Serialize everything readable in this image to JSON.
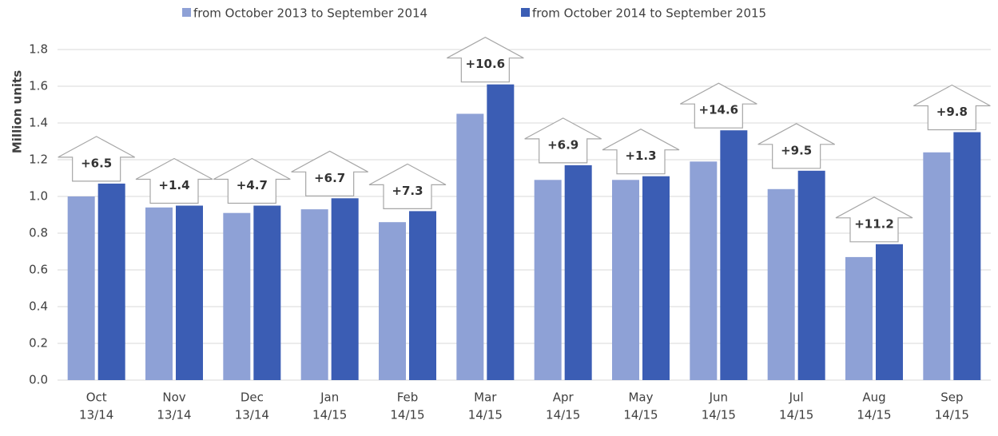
{
  "chart_data": {
    "type": "bar",
    "y_label": "Million units",
    "categories": [
      [
        "Oct",
        "13/14"
      ],
      [
        "Nov",
        "13/14"
      ],
      [
        "Dec",
        "13/14"
      ],
      [
        "Jan",
        "14/15"
      ],
      [
        "Feb",
        "14/15"
      ],
      [
        "Mar",
        "14/15"
      ],
      [
        "Apr",
        "14/15"
      ],
      [
        "May",
        "14/15"
      ],
      [
        "Jun",
        "14/15"
      ],
      [
        "Jul",
        "14/15"
      ],
      [
        "Aug",
        "14/15"
      ],
      [
        "Sep",
        "14/15"
      ]
    ],
    "series": [
      {
        "name": "from October 2013 to September 2014",
        "color": "#8ea1d6",
        "values": [
          1.0,
          0.94,
          0.91,
          0.93,
          0.86,
          1.45,
          1.09,
          1.09,
          1.19,
          1.04,
          0.67,
          1.24
        ]
      },
      {
        "name": "from October 2014 to September 2015",
        "color": "#3b5db4",
        "values": [
          1.07,
          0.95,
          0.95,
          0.99,
          0.92,
          1.61,
          1.17,
          1.11,
          1.36,
          1.14,
          0.74,
          1.35
        ]
      }
    ],
    "annotations": {
      "values": [
        6.5,
        1.4,
        4.7,
        6.7,
        7.3,
        10.6,
        6.9,
        1.3,
        14.6,
        9.5,
        11.2,
        9.8
      ],
      "value_labels": [
        "+6.5",
        "+1.4",
        "+4.7",
        "+6.7",
        "+7.3",
        "+10.6",
        "+6.9",
        "+1.3",
        "+14.6",
        "+9.5",
        "+11.2",
        "+9.8"
      ]
    },
    "ylim": [
      0,
      1.8
    ],
    "yticks": [
      {
        "value": 0,
        "label": "0.0"
      },
      0.2,
      0.4,
      0.6,
      0.8,
      {
        "value": 1,
        "label": "1.0"
      },
      1.2,
      1.4,
      1.6,
      1.8
    ],
    "grid": true,
    "legend": "top"
  }
}
